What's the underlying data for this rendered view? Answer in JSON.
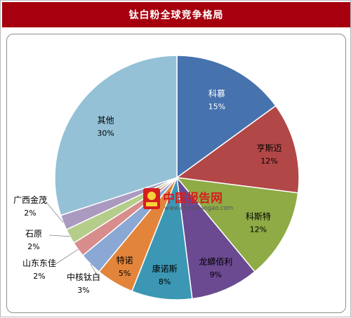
{
  "title": "钛白粉全球竞争格局",
  "watermark": {
    "name": "中国报告网",
    "url": "www.chinabaogao.com",
    "name_color": "#d41f1f",
    "url_color": "#555555"
  },
  "colors": {
    "title_bar": "#a6000e",
    "title_text": "#ffffff"
  },
  "chart_data": {
    "type": "pie",
    "title": "钛白粉全球竞争格局",
    "start": "12 o'clock, clockwise",
    "slices": [
      {
        "label": "科慕",
        "pct_label": "15%",
        "value": 15,
        "color": "#4672ad",
        "label_inside": true,
        "text_color": "#ffffff"
      },
      {
        "label": "亨斯迈",
        "pct_label": "12%",
        "value": 12,
        "color": "#b24747",
        "label_inside": true,
        "text_color": "#000000"
      },
      {
        "label": "科斯特",
        "pct_label": "12%",
        "value": 12,
        "color": "#8eab45",
        "label_inside": true,
        "text_color": "#000000"
      },
      {
        "label": "龙蟒佰利",
        "pct_label": "9%",
        "value": 9,
        "color": "#6b4a91",
        "label_inside": true,
        "text_color": "#000000"
      },
      {
        "label": "康诺斯",
        "pct_label": "8%",
        "value": 8,
        "color": "#3b97b3",
        "label_inside": true,
        "text_color": "#000000"
      },
      {
        "label": "特诺",
        "pct_label": "5%",
        "value": 5,
        "color": "#e2853b",
        "label_inside": true,
        "text_color": "#000000"
      },
      {
        "label": "中核钛白",
        "pct_label": "3%",
        "value": 3,
        "color": "#8ba7d3",
        "label_inside": false,
        "text_color": "#000000"
      },
      {
        "label": "山东东佳",
        "pct_label": "2%",
        "value": 2,
        "color": "#d88c8c",
        "label_inside": false,
        "text_color": "#000000"
      },
      {
        "label": "石原",
        "pct_label": "2%",
        "value": 2,
        "color": "#b5cd8b",
        "label_inside": false,
        "text_color": "#000000"
      },
      {
        "label": "广西金茂",
        "pct_label": "2%",
        "value": 2,
        "color": "#aa9ac0",
        "label_inside": false,
        "text_color": "#000000"
      },
      {
        "label": "其他",
        "pct_label": "30%",
        "value": 30,
        "color": "#94c1d6",
        "label_inside": true,
        "text_color": "#000000"
      }
    ]
  }
}
